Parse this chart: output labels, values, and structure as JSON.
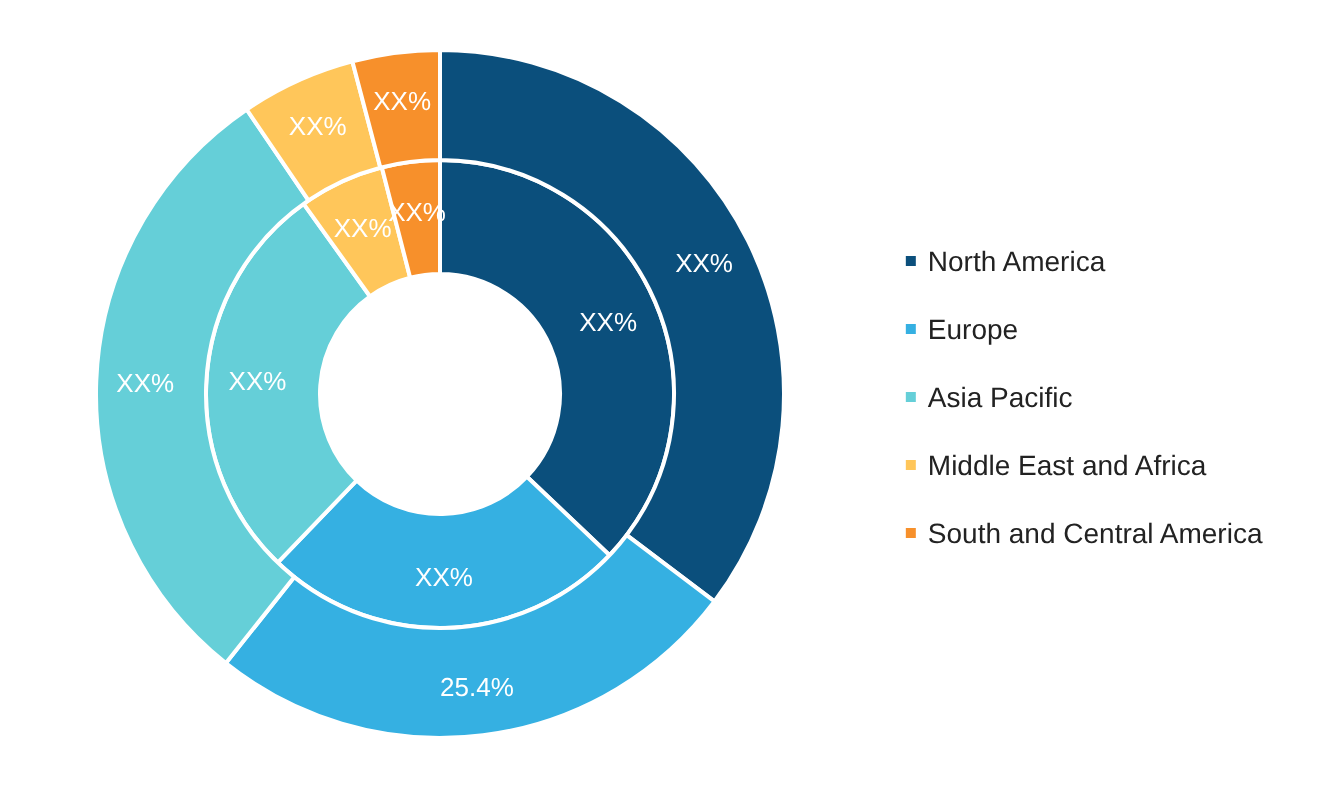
{
  "chart_data": {
    "type": "donut",
    "categories": [
      "North America",
      "Europe",
      "Asia Pacific",
      "Middle East and Africa",
      "South and Central America"
    ],
    "colors": [
      "#0b4f7c",
      "#35b0e2",
      "#65cfd8",
      "#ffc65a",
      "#f7902b"
    ],
    "series": [
      {
        "values": [
          37.1,
          25.1,
          27.9,
          5.9,
          4.0
        ],
        "value_labels": [
          "XX%",
          "XX%",
          "XX%",
          "XX%",
          "XX%"
        ]
      },
      {
        "values": [
          35.3,
          25.4,
          29.8,
          5.4,
          4.1
        ],
        "value_labels": [
          "XX%",
          "25.4%",
          "XX%",
          "XX%",
          "XX%"
        ]
      }
    ],
    "legend": "right"
  }
}
